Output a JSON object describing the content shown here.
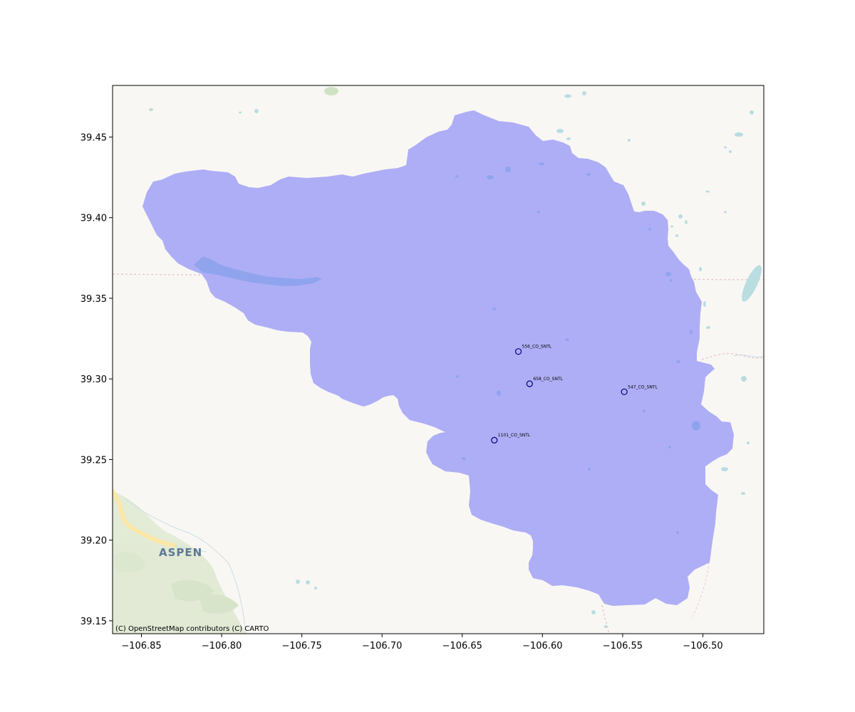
{
  "chart_data": {
    "type": "scatter",
    "title": "",
    "xlabel": "",
    "ylabel": "",
    "xlim": [
      -106.868,
      -106.462
    ],
    "ylim": [
      39.142,
      39.482
    ],
    "xticks": [
      -106.85,
      -106.8,
      -106.75,
      -106.7,
      -106.65,
      -106.6,
      -106.55,
      -106.5
    ],
    "xtick_labels": [
      "−106.85",
      "−106.80",
      "−106.75",
      "−106.70",
      "−106.65",
      "−106.60",
      "−106.55",
      "−106.50"
    ],
    "yticks": [
      39.15,
      39.2,
      39.25,
      39.3,
      39.35,
      39.4,
      39.45
    ],
    "ytick_labels": [
      "39.15",
      "39.20",
      "39.25",
      "39.30",
      "39.35",
      "39.40",
      "39.45"
    ],
    "grid": false,
    "points": [
      {
        "name": "556_CO_SNTL",
        "x": -106.615,
        "y": 39.317
      },
      {
        "name": "658_CO_SNTL",
        "x": -106.608,
        "y": 39.297
      },
      {
        "name": "547_CO_SNTL",
        "x": -106.549,
        "y": 39.292
      },
      {
        "name": "1101_CO_SNTL",
        "x": -106.63,
        "y": 39.262
      }
    ],
    "marker_color": "#000080"
  },
  "map": {
    "basemap_attribution": "(C) OpenStreetMap contributors (C) CARTO",
    "city_label": "ASPEN",
    "watershed_fill": "#aaaaf5",
    "basemap_background": "#f9f7f4",
    "water_color": "#b9dde0",
    "reservoir_color": "#90a4ee"
  }
}
